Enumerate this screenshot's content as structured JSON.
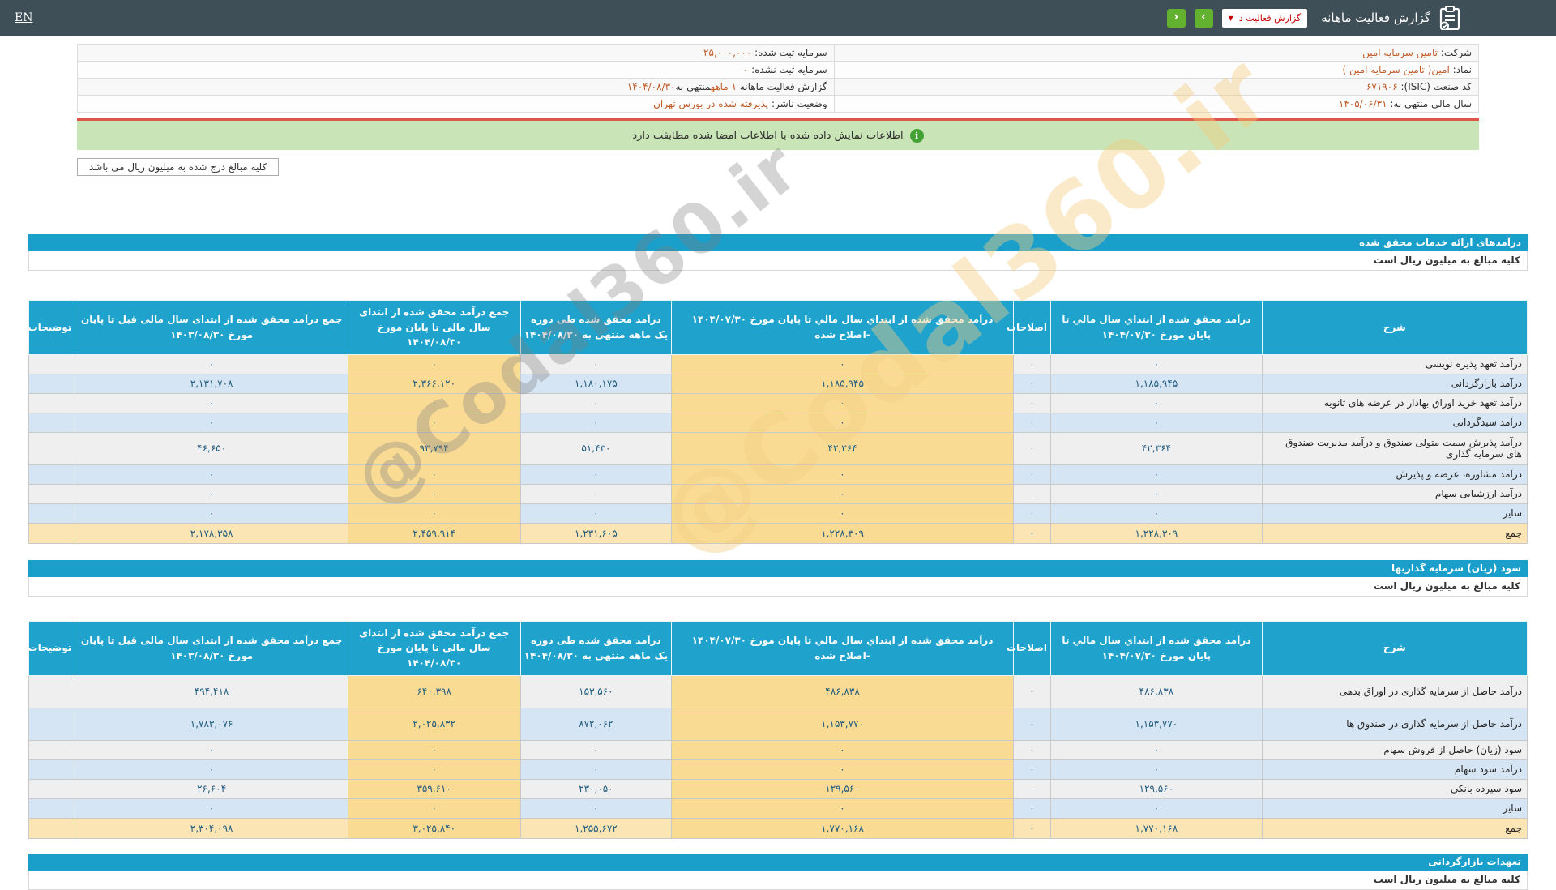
{
  "header": {
    "en": "EN",
    "title": "گزارش فعالیت ماهانه",
    "dropdown": "گزارش فعالیت د",
    "nav_forward": "›",
    "nav_back": "‹"
  },
  "info_rows": [
    {
      "right": [
        {
          "t": "شرکت:",
          "c": "dark"
        },
        {
          "t": " تامین سرمایه امین",
          "c": "orange"
        }
      ],
      "left": [
        {
          "t": "سرمایه ثبت شده:",
          "c": "dark"
        },
        {
          "t": " ۲۵,۰۰۰,۰۰۰",
          "c": "orange"
        }
      ]
    },
    {
      "right": [
        {
          "t": "نماد:",
          "c": "dark"
        },
        {
          "t": " امین( تامین سرمایه امین )",
          "c": "orange"
        }
      ],
      "left": [
        {
          "t": "سرمایه ثبت نشده:",
          "c": "dark"
        },
        {
          "t": " ۰",
          "c": "orange"
        }
      ]
    },
    {
      "right": [
        {
          "t": "کد صنعت (ISIC):",
          "c": "dark"
        },
        {
          "t": " ۶۷۱۹۰۶",
          "c": "orange"
        }
      ],
      "left": [
        {
          "t": "گزارش فعالیت ماهانه ",
          "c": "dark"
        },
        {
          "t": "۱ ماهه",
          "c": "orange"
        },
        {
          "t": "منتهی به",
          "c": "dark"
        },
        {
          "t": "۱۴۰۴/۰۸/۳۰",
          "c": "orange"
        }
      ]
    },
    {
      "right": [
        {
          "t": "سال مالی منتهی به:",
          "c": "dark"
        },
        {
          "t": " ۱۴۰۵/۰۶/۳۱",
          "c": "orange"
        }
      ],
      "left": [
        {
          "t": "وضعیت ناشر:",
          "c": "dark"
        },
        {
          "t": " پذیرفته شده در بورس تهران",
          "c": "orange"
        }
      ]
    }
  ],
  "banner": {
    "text": "اطلاعات نمایش داده شده با اطلاعات امضا شده مطابقت دارد",
    "icon": "i"
  },
  "amounts_note": "کلیه مبالغ درج شده به میلیون ریال می باشد",
  "table_column_headers": [
    "شرح",
    "درآمد محقق شده از ابتداي سال مالي تا پایان مورخ ۱۴۰۴/۰۷/۳۰",
    "اصلاحات",
    "درآمد محقق شده از ابتداي سال مالي تا پایان مورخ ۱۴۰۴/۰۷/۳۰ -اصلاح شده",
    "درآمد محقق شده طی دوره یک ماهه منتهی به ۱۴۰۴/۰۸/۳۰",
    "جمع درآمد محقق شده از ابتدای سال مالی تا پایان مورخ ۱۴۰۴/۰۸/۳۰",
    "جمع درآمد محقق شده از ابتدای سال مالی قبل تا پایان مورخ ۱۴۰۳/۰۸/۳۰",
    "توضیحات"
  ],
  "sections": [
    {
      "title": "درآمدهای ارائه خدمات محقق شده",
      "unit_note": "کلیه مبالغ به میلیون ریال است",
      "table": {
        "rows": [
          {
            "label": "درآمد تعهد پذیره نویسی",
            "values": [
              "۰",
              "۰",
              "۰",
              "۰",
              "۰",
              "۰"
            ]
          },
          {
            "label": "درآمد بازارگردانی",
            "values": [
              "۱,۱۸۵,۹۴۵",
              "۰",
              "۱,۱۸۵,۹۴۵",
              "۱,۱۸۰,۱۷۵",
              "۲,۳۶۶,۱۲۰",
              "۲,۱۳۱,۷۰۸"
            ]
          },
          {
            "label": "درآمد تعهد خرید اوراق بهادار در عرضه های ثانویه",
            "values": [
              "۰",
              "۰",
              "۰",
              "۰",
              "۰",
              "۰"
            ]
          },
          {
            "label": "درآمد سبدگردانی",
            "values": [
              "۰",
              "۰",
              "۰",
              "۰",
              "۰",
              "۰"
            ]
          },
          {
            "label": "درآمد پذیرش سمت متولی صندوق و درآمد مدیریت صندوق های سرمایه گذاری",
            "values": [
              "۴۲,۳۶۴",
              "۰",
              "۴۲,۳۶۴",
              "۵۱,۴۳۰",
              "۹۳,۷۹۴",
              "۴۶,۶۵۰"
            ],
            "tall": true
          },
          {
            "label": "درآمد مشاوره، عرضه و پذیرش",
            "values": [
              "۰",
              "۰",
              "۰",
              "۰",
              "۰",
              "۰"
            ]
          },
          {
            "label": "درآمد ارزشیابی سهام",
            "values": [
              "۰",
              "۰",
              "۰",
              "۰",
              "۰",
              "۰"
            ]
          },
          {
            "label": "سایر",
            "values": [
              "۰",
              "۰",
              "۰",
              "۰",
              "۰",
              "۰"
            ]
          },
          {
            "label": "جمع",
            "values": [
              "۱,۲۲۸,۳۰۹",
              "۰",
              "۱,۲۲۸,۳۰۹",
              "۱,۲۳۱,۶۰۵",
              "۲,۴۵۹,۹۱۴",
              "۲,۱۷۸,۳۵۸"
            ],
            "total": true
          }
        ]
      }
    },
    {
      "title": "سود (زیان) سرمایه گذاریها",
      "unit_note": "کلیه مبالغ به میلیون ریال است",
      "table": {
        "rows": [
          {
            "label": "درآمد حاصل از سرمایه گذاری در اوراق بدهی",
            "values": [
              "۴۸۶,۸۳۸",
              "۰",
              "۴۸۶,۸۳۸",
              "۱۵۳,۵۶۰",
              "۶۴۰,۳۹۸",
              "۴۹۴,۴۱۸"
            ],
            "tall": true
          },
          {
            "label": "درآمد حاصل از سرمایه گذاری در صندوق ها",
            "values": [
              "۱,۱۵۳,۷۷۰",
              "۰",
              "۱,۱۵۳,۷۷۰",
              "۸۷۲,۰۶۲",
              "۲,۰۲۵,۸۳۲",
              "۱,۷۸۳,۰۷۶"
            ],
            "tall": true
          },
          {
            "label": "سود (زیان) حاصل از فروش سهام",
            "values": [
              "۰",
              "۰",
              "۰",
              "۰",
              "۰",
              "۰"
            ]
          },
          {
            "label": "درآمد سود سهام",
            "values": [
              "۰",
              "۰",
              "۰",
              "۰",
              "۰",
              "۰"
            ]
          },
          {
            "label": "سود سپرده بانکی",
            "values": [
              "۱۲۹,۵۶۰",
              "۰",
              "۱۲۹,۵۶۰",
              "۲۳۰,۰۵۰",
              "۳۵۹,۶۱۰",
              "۲۶,۶۰۴"
            ]
          },
          {
            "label": "سایر",
            "values": [
              "۰",
              "۰",
              "۰",
              "۰",
              "۰",
              "۰"
            ]
          },
          {
            "label": "جمع",
            "values": [
              "۱,۷۷۰,۱۶۸",
              "۰",
              "۱,۷۷۰,۱۶۸",
              "۱,۲۵۵,۶۷۲",
              "۳,۰۲۵,۸۴۰",
              "۲,۳۰۴,۰۹۸"
            ],
            "total": true
          }
        ]
      }
    },
    {
      "title": "تعهدات بازارگردانی",
      "unit_note": "کلیه مبالغ به میلیون ریال است"
    }
  ],
  "watermark": {
    "text": "@Codal360.ir"
  }
}
